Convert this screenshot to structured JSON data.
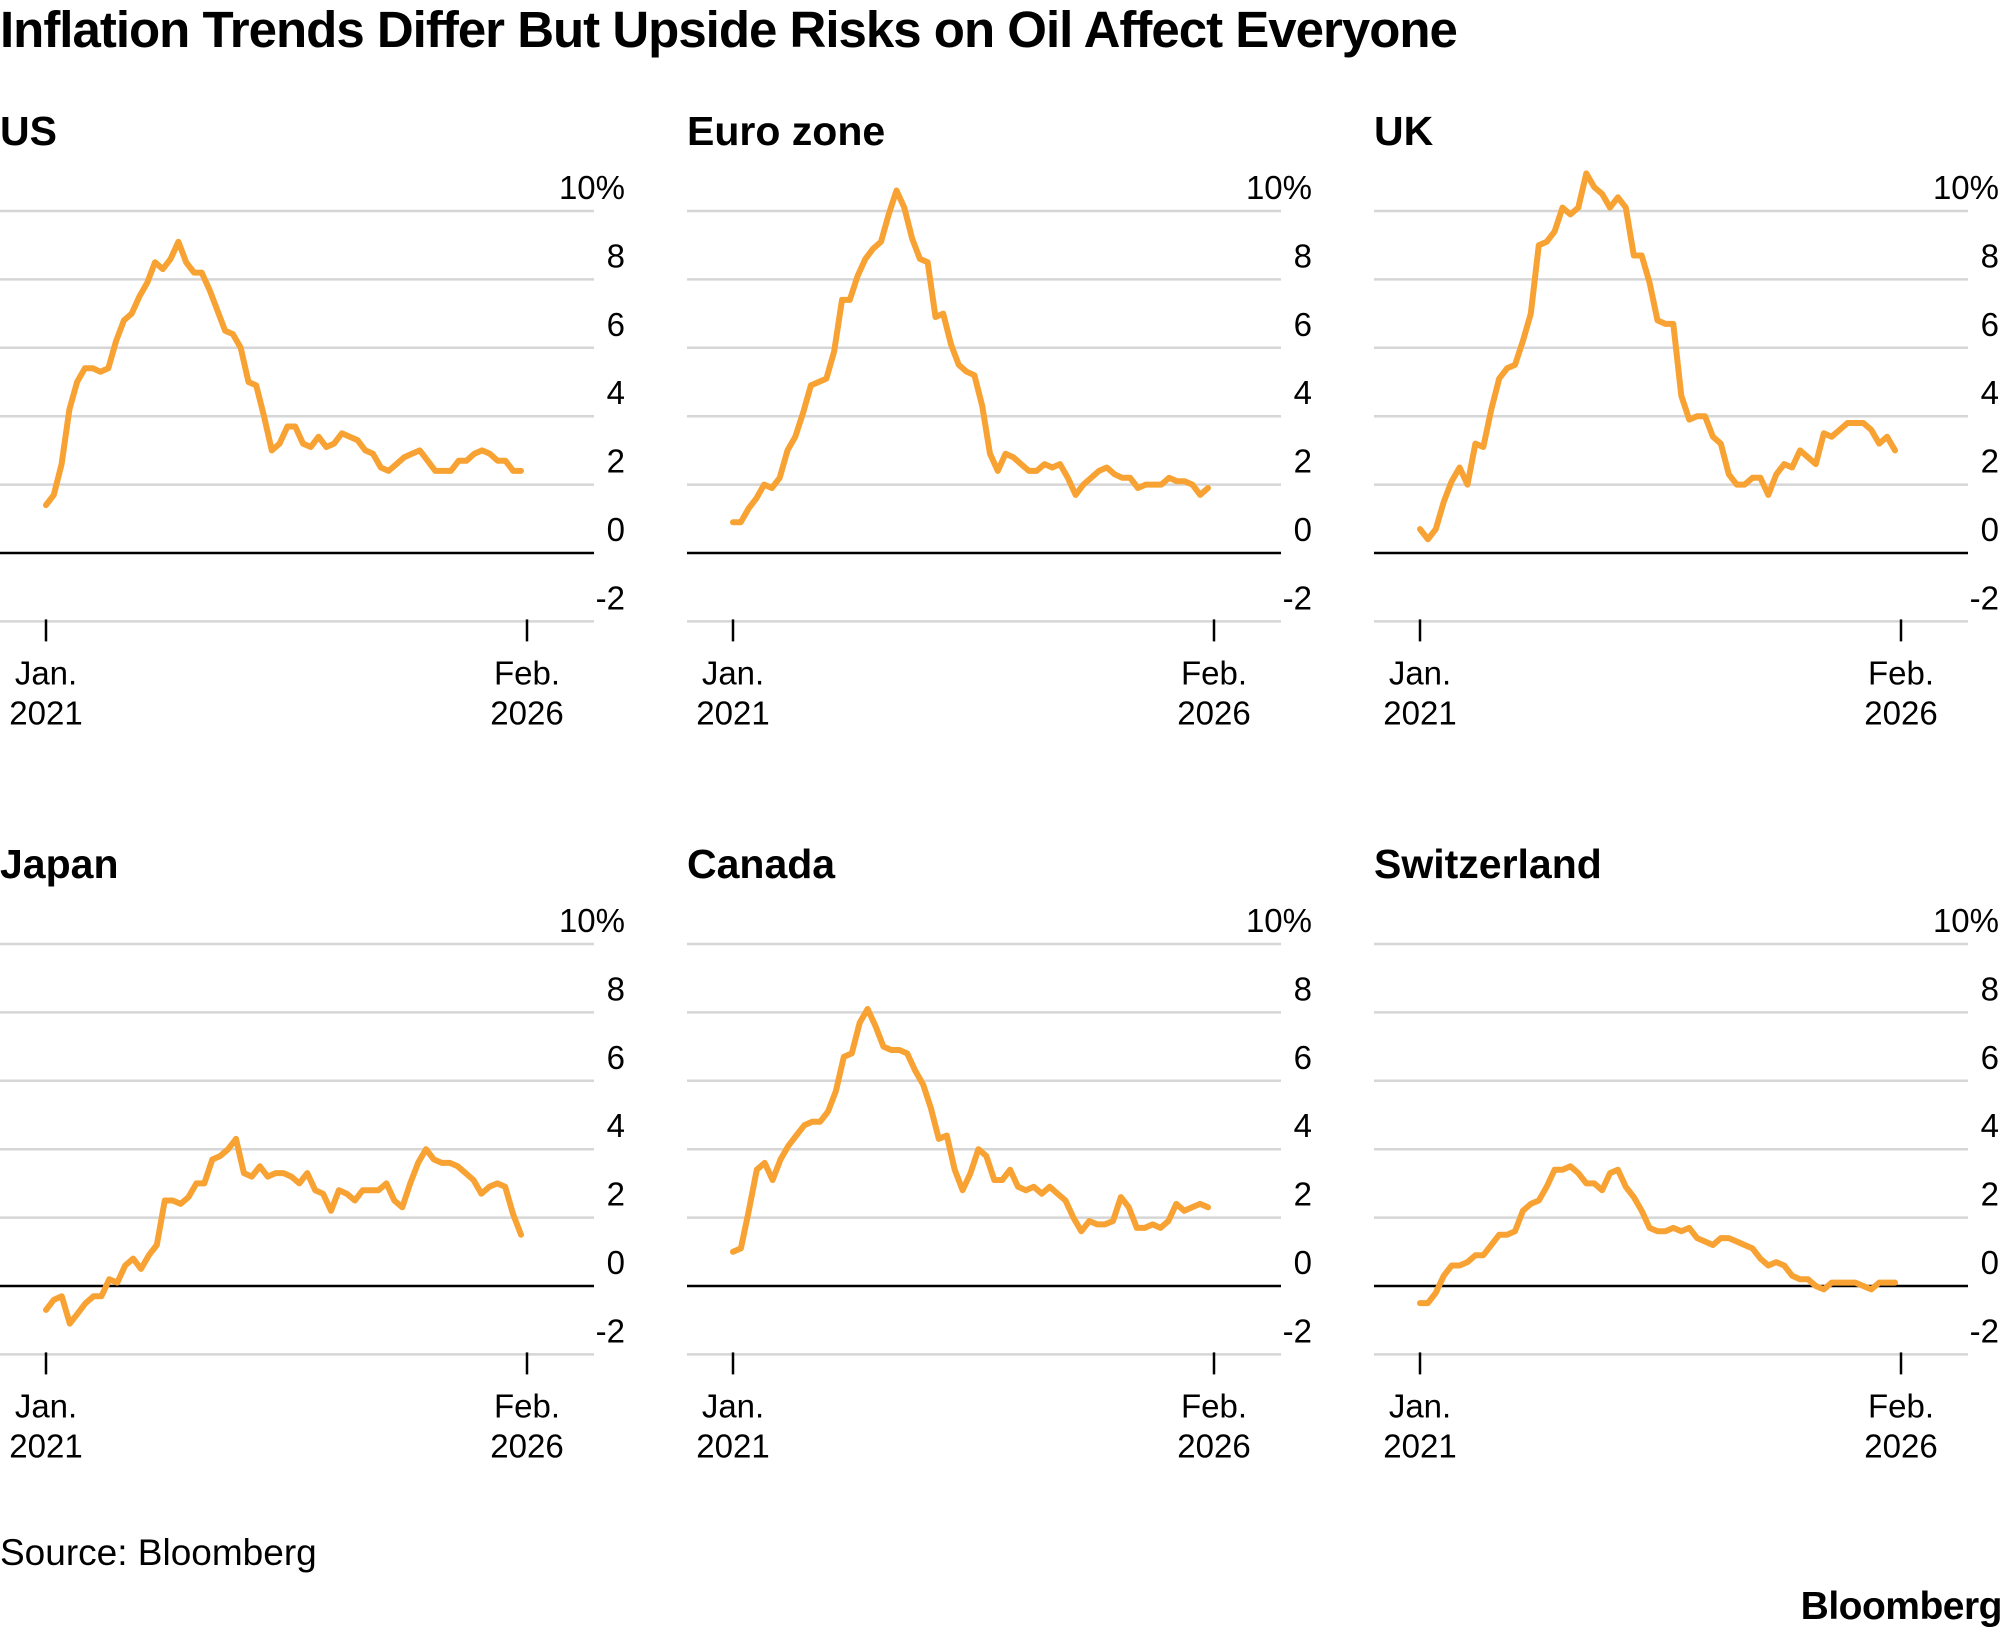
{
  "title": "Inflation Trends Differ But Upside Risks on Oil Affect Everyone",
  "source": "Source: Bloomberg",
  "logo": "Bloomberg",
  "colors": {
    "line": "#F7A233",
    "grid": "#D6D6D6",
    "zero": "#000000",
    "text": "#000000"
  },
  "chart_data": [
    {
      "type": "line",
      "title": "US",
      "ylim": [
        -2,
        10
      ],
      "yticks": [
        -2,
        0,
        2,
        4,
        6,
        8,
        10
      ],
      "ytick_labels": [
        "-2",
        "0",
        "2",
        "4",
        "6",
        "8",
        "10%"
      ],
      "xticks": [
        {
          "line1": "Jan.",
          "line2": "2021"
        },
        {
          "line1": "Feb.",
          "line2": "2026"
        }
      ],
      "series": [
        {
          "name": "US",
          "values": [
            1.4,
            1.7,
            2.6,
            4.2,
            5.0,
            5.4,
            5.4,
            5.3,
            5.4,
            6.2,
            6.8,
            7.0,
            7.5,
            7.9,
            8.5,
            8.3,
            8.6,
            9.1,
            8.5,
            8.2,
            8.2,
            7.7,
            7.1,
            6.5,
            6.4,
            6.0,
            5.0,
            4.9,
            4.0,
            3.0,
            3.2,
            3.7,
            3.7,
            3.2,
            3.1,
            3.4,
            3.1,
            3.2,
            3.5,
            3.4,
            3.3,
            3.0,
            2.9,
            2.5,
            2.4,
            2.6,
            2.8,
            2.9,
            3.0,
            2.7,
            2.4,
            2.4,
            2.4,
            2.7,
            2.7,
            2.9,
            3.0,
            2.9,
            2.7,
            2.7,
            2.4,
            2.4
          ]
        }
      ]
    },
    {
      "type": "line",
      "title": "Euro zone",
      "ylim": [
        -2,
        10
      ],
      "yticks": [
        -2,
        0,
        2,
        4,
        6,
        8,
        10
      ],
      "ytick_labels": [
        "-2",
        "0",
        "2",
        "4",
        "6",
        "8",
        "10%"
      ],
      "xticks": [
        {
          "line1": "Jan.",
          "line2": "2021"
        },
        {
          "line1": "Feb.",
          "line2": "2026"
        }
      ],
      "series": [
        {
          "name": "Euro zone",
          "values": [
            0.9,
            0.9,
            1.3,
            1.6,
            2.0,
            1.9,
            2.2,
            3.0,
            3.4,
            4.1,
            4.9,
            5.0,
            5.1,
            5.9,
            7.4,
            7.4,
            8.1,
            8.6,
            8.9,
            9.1,
            9.9,
            10.6,
            10.1,
            9.2,
            8.6,
            8.5,
            6.9,
            7.0,
            6.1,
            5.5,
            5.3,
            5.2,
            4.3,
            2.9,
            2.4,
            2.9,
            2.8,
            2.6,
            2.4,
            2.4,
            2.6,
            2.5,
            2.6,
            2.2,
            1.7,
            2.0,
            2.2,
            2.4,
            2.5,
            2.3,
            2.2,
            2.2,
            1.9,
            2.0,
            2.0,
            2.0,
            2.2,
            2.1,
            2.1,
            2.0,
            1.7,
            1.9
          ]
        }
      ]
    },
    {
      "type": "line",
      "title": "UK",
      "ylim": [
        -2,
        10
      ],
      "yticks": [
        -2,
        0,
        2,
        4,
        6,
        8,
        10
      ],
      "ytick_labels": [
        "-2",
        "0",
        "2",
        "4",
        "6",
        "8",
        "10%"
      ],
      "xticks": [
        {
          "line1": "Jan.",
          "line2": "2021"
        },
        {
          "line1": "Feb.",
          "line2": "2026"
        }
      ],
      "series": [
        {
          "name": "UK",
          "values": [
            0.7,
            0.4,
            0.7,
            1.5,
            2.1,
            2.5,
            2.0,
            3.2,
            3.1,
            4.2,
            5.1,
            5.4,
            5.5,
            6.2,
            7.0,
            9.0,
            9.1,
            9.4,
            10.1,
            9.9,
            10.1,
            11.1,
            10.7,
            10.5,
            10.1,
            10.4,
            10.1,
            8.7,
            8.7,
            7.9,
            6.8,
            6.7,
            6.7,
            4.6,
            3.9,
            4.0,
            4.0,
            3.4,
            3.2,
            2.3,
            2.0,
            2.0,
            2.2,
            2.2,
            1.7,
            2.3,
            2.6,
            2.5,
            3.0,
            2.8,
            2.6,
            3.5,
            3.4,
            3.6,
            3.8,
            3.8,
            3.8,
            3.6,
            3.2,
            3.4,
            3.0
          ]
        }
      ]
    },
    {
      "type": "line",
      "title": "Japan",
      "ylim": [
        -2,
        10
      ],
      "yticks": [
        -2,
        0,
        2,
        4,
        6,
        8,
        10
      ],
      "ytick_labels": [
        "-2",
        "0",
        "2",
        "4",
        "6",
        "8",
        "10%"
      ],
      "xticks": [
        {
          "line1": "Jan.",
          "line2": "2021"
        },
        {
          "line1": "Feb.",
          "line2": "2026"
        }
      ],
      "series": [
        {
          "name": "Japan",
          "values": [
            -0.7,
            -0.4,
            -0.3,
            -1.1,
            -0.8,
            -0.5,
            -0.3,
            -0.3,
            0.2,
            0.1,
            0.6,
            0.8,
            0.5,
            0.9,
            1.2,
            2.5,
            2.5,
            2.4,
            2.6,
            3.0,
            3.0,
            3.7,
            3.8,
            4.0,
            4.3,
            3.3,
            3.2,
            3.5,
            3.2,
            3.3,
            3.3,
            3.2,
            3.0,
            3.3,
            2.8,
            2.7,
            2.2,
            2.8,
            2.7,
            2.5,
            2.8,
            2.8,
            2.8,
            3.0,
            2.5,
            2.3,
            3.0,
            3.6,
            4.0,
            3.7,
            3.6,
            3.6,
            3.5,
            3.3,
            3.1,
            2.7,
            2.9,
            3.0,
            2.9,
            2.1,
            1.5
          ]
        }
      ]
    },
    {
      "type": "line",
      "title": "Canada",
      "ylim": [
        -2,
        10
      ],
      "yticks": [
        -2,
        0,
        2,
        4,
        6,
        8,
        10
      ],
      "ytick_labels": [
        "-2",
        "0",
        "2",
        "4",
        "6",
        "8",
        "10%"
      ],
      "xticks": [
        {
          "line1": "Jan.",
          "line2": "2021"
        },
        {
          "line1": "Feb.",
          "line2": "2026"
        }
      ],
      "series": [
        {
          "name": "Canada",
          "values": [
            1.0,
            1.1,
            2.2,
            3.4,
            3.6,
            3.1,
            3.7,
            4.1,
            4.4,
            4.7,
            4.8,
            4.8,
            5.1,
            5.7,
            6.7,
            6.8,
            7.7,
            8.1,
            7.6,
            7.0,
            6.9,
            6.9,
            6.8,
            6.3,
            5.9,
            5.2,
            4.3,
            4.4,
            3.4,
            2.8,
            3.3,
            4.0,
            3.8,
            3.1,
            3.1,
            3.4,
            2.9,
            2.8,
            2.9,
            2.7,
            2.9,
            2.7,
            2.5,
            2.0,
            1.6,
            1.9,
            1.8,
            1.8,
            1.9,
            2.6,
            2.3,
            1.7,
            1.7,
            1.8,
            1.7,
            1.9,
            2.4,
            2.2,
            2.3,
            2.4,
            2.3
          ]
        }
      ]
    },
    {
      "type": "line",
      "title": "Switzerland",
      "ylim": [
        -2,
        10
      ],
      "yticks": [
        -2,
        0,
        2,
        4,
        6,
        8,
        10
      ],
      "ytick_labels": [
        "-2",
        "0",
        "2",
        "4",
        "6",
        "8",
        "10%"
      ],
      "xticks": [
        {
          "line1": "Jan.",
          "line2": "2021"
        },
        {
          "line1": "Feb.",
          "line2": "2026"
        }
      ],
      "series": [
        {
          "name": "Switzerland",
          "values": [
            -0.5,
            -0.5,
            -0.2,
            0.3,
            0.6,
            0.6,
            0.7,
            0.9,
            0.9,
            1.2,
            1.5,
            1.5,
            1.6,
            2.2,
            2.4,
            2.5,
            2.9,
            3.4,
            3.4,
            3.5,
            3.3,
            3.0,
            3.0,
            2.8,
            3.3,
            3.4,
            2.9,
            2.6,
            2.2,
            1.7,
            1.6,
            1.6,
            1.7,
            1.6,
            1.7,
            1.4,
            1.3,
            1.2,
            1.4,
            1.4,
            1.3,
            1.2,
            1.1,
            0.8,
            0.6,
            0.7,
            0.6,
            0.3,
            0.2,
            0.2,
            0.0,
            -0.1,
            0.1,
            0.1,
            0.1,
            0.1,
            0.0,
            -0.1,
            0.1,
            0.1,
            0.1
          ]
        }
      ]
    }
  ]
}
